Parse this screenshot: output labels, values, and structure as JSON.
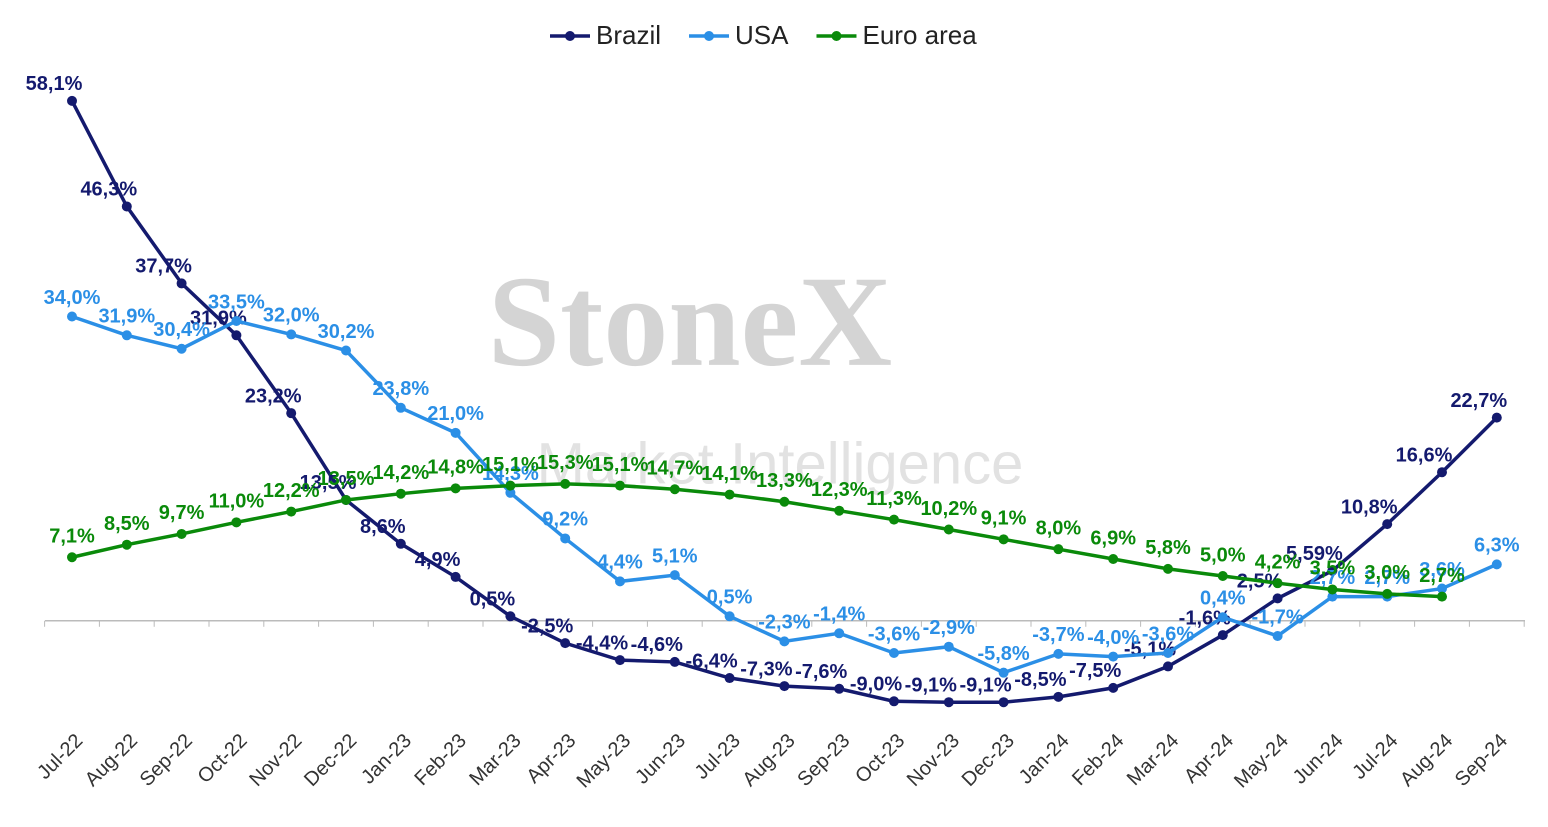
{
  "chart_data": {
    "type": "line",
    "watermark": [
      "StoneX",
      "Market Intelligence"
    ],
    "categories": [
      "Jul-22",
      "Aug-22",
      "Sep-22",
      "Oct-22",
      "Nov-22",
      "Dec-22",
      "Jan-23",
      "Feb-23",
      "Mar-23",
      "Apr-23",
      "May-23",
      "Jun-23",
      "Jul-23",
      "Aug-23",
      "Sep-23",
      "Oct-23",
      "Nov-23",
      "Dec-23",
      "Jan-24",
      "Feb-24",
      "Mar-24",
      "Apr-24",
      "May-24",
      "Jun-24",
      "Jul-24",
      "Aug-24",
      "Sep-24"
    ],
    "series": [
      {
        "name": "Brazil",
        "color": "#141a6e",
        "values": [
          58.1,
          46.3,
          37.7,
          31.9,
          23.2,
          13.5,
          8.6,
          4.9,
          0.5,
          -2.5,
          -4.4,
          -4.6,
          -6.4,
          -7.3,
          -7.6,
          -9.0,
          -9.1,
          -9.1,
          -8.5,
          -7.5,
          -5.1,
          -1.6,
          2.5,
          5.59,
          10.8,
          16.6,
          22.7
        ],
        "value_labels": [
          "58,1%",
          "46,3%",
          "37,7%",
          "31,9%",
          "23,2%",
          "13,5%",
          "8,6%",
          "4,9%",
          "0,5%",
          "-2,5%",
          "-4,4%",
          "-4,6%",
          "-6,4%",
          "-7,3%",
          "-7,6%",
          "-9,0%",
          "-9,1%",
          "-9,1%",
          "-8,5%",
          "-7,5%",
          "-5,1%",
          "-1,6%",
          "2,5%",
          "5,59%",
          "10,8%",
          "16,6%",
          "22,7%"
        ]
      },
      {
        "name": "USA",
        "color": "#2b8fe6",
        "values": [
          34.0,
          31.9,
          30.4,
          33.5,
          32.0,
          30.2,
          23.8,
          21.0,
          14.3,
          9.2,
          4.4,
          5.1,
          0.5,
          -2.3,
          -1.4,
          -3.6,
          -2.9,
          -5.8,
          -3.7,
          -4.0,
          -3.6,
          0.4,
          -1.7,
          2.7,
          2.7,
          3.6,
          6.3
        ],
        "value_labels": [
          "34,0%",
          "31,9%",
          "30,4%",
          "33,5%",
          "32,0%",
          "30,2%",
          "23,8%",
          "21,0%",
          "14,3%",
          "9,2%",
          "4,4%",
          "5,1%",
          "0,5%",
          "-2,3%",
          "-1,4%",
          "-3,6%",
          "-2,9%",
          "-5,8%",
          "-3,7%",
          "-4,0%",
          "-3,6%",
          "0,4%",
          "-1,7%",
          "2,7%",
          "2,7%",
          "3,6%",
          "6,3%"
        ]
      },
      {
        "name": "Euro area",
        "color": "#0a8a0a",
        "values": [
          7.1,
          8.5,
          9.7,
          11.0,
          12.2,
          13.5,
          14.2,
          14.8,
          15.1,
          15.3,
          15.1,
          14.7,
          14.1,
          13.3,
          12.3,
          11.3,
          10.2,
          9.1,
          8.0,
          6.9,
          5.8,
          5.0,
          4.2,
          3.5,
          3.0,
          2.7,
          null
        ],
        "value_labels": [
          "7,1%",
          "8,5%",
          "9,7%",
          "11,0%",
          "12,2%",
          "13,5%",
          "14,2%",
          "14,8%",
          "15,1%",
          "15,3%",
          "15,1%",
          "14,7%",
          "14,1%",
          "13,3%",
          "12,3%",
          "11,3%",
          "10,2%",
          "9,1%",
          "8,0%",
          "6,9%",
          "5,8%",
          "5,0%",
          "4,2%",
          "3,5%",
          "3,0%",
          "2,7%",
          null
        ]
      }
    ],
    "ylim": [
      -15,
      63
    ],
    "legend": "top"
  }
}
